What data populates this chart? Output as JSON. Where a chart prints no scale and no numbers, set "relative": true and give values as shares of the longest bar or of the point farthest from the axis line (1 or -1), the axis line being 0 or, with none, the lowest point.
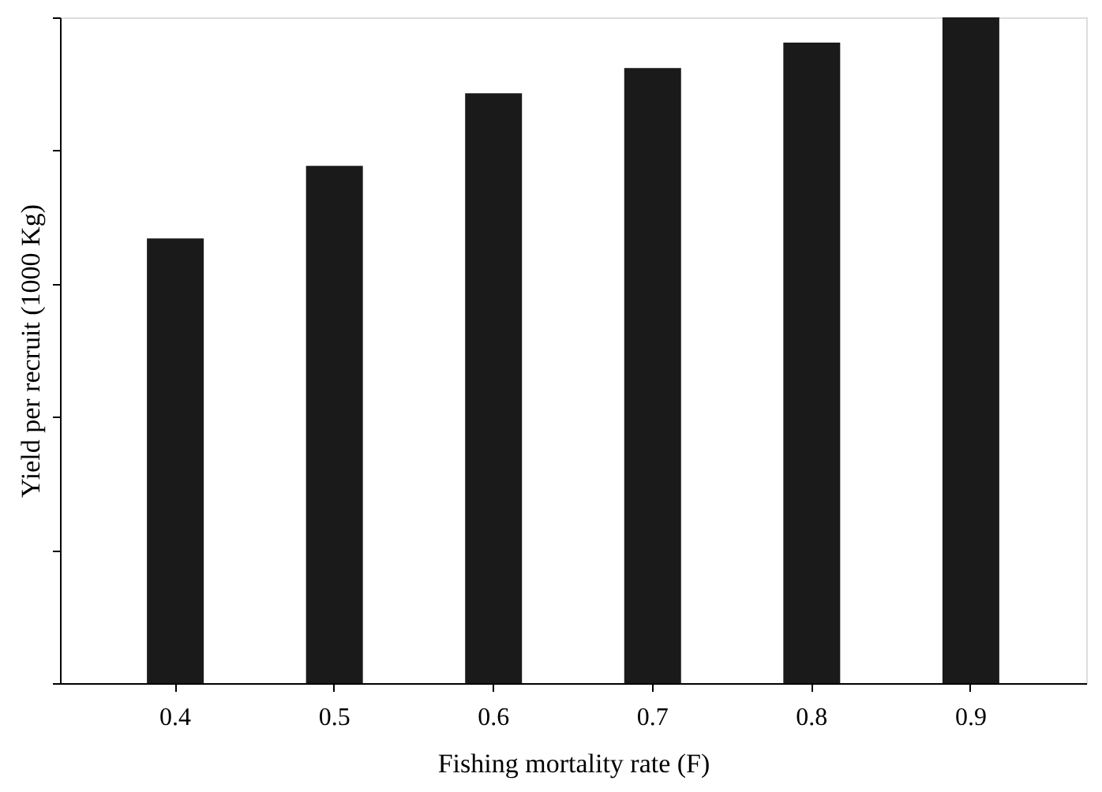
{
  "chart_data": {
    "type": "bar",
    "relative": true,
    "xlabel": "Fishing mortality rate (F)",
    "ylabel": "Yield per recruit (1000 Kg)",
    "categories": [
      "0.4",
      "0.5",
      "0.6",
      "0.7",
      "0.8",
      "0.9"
    ],
    "values": [
      0.668,
      0.777,
      0.886,
      0.924,
      0.962,
      1
    ],
    "color": "#1a1a1a",
    "grid": false
  }
}
